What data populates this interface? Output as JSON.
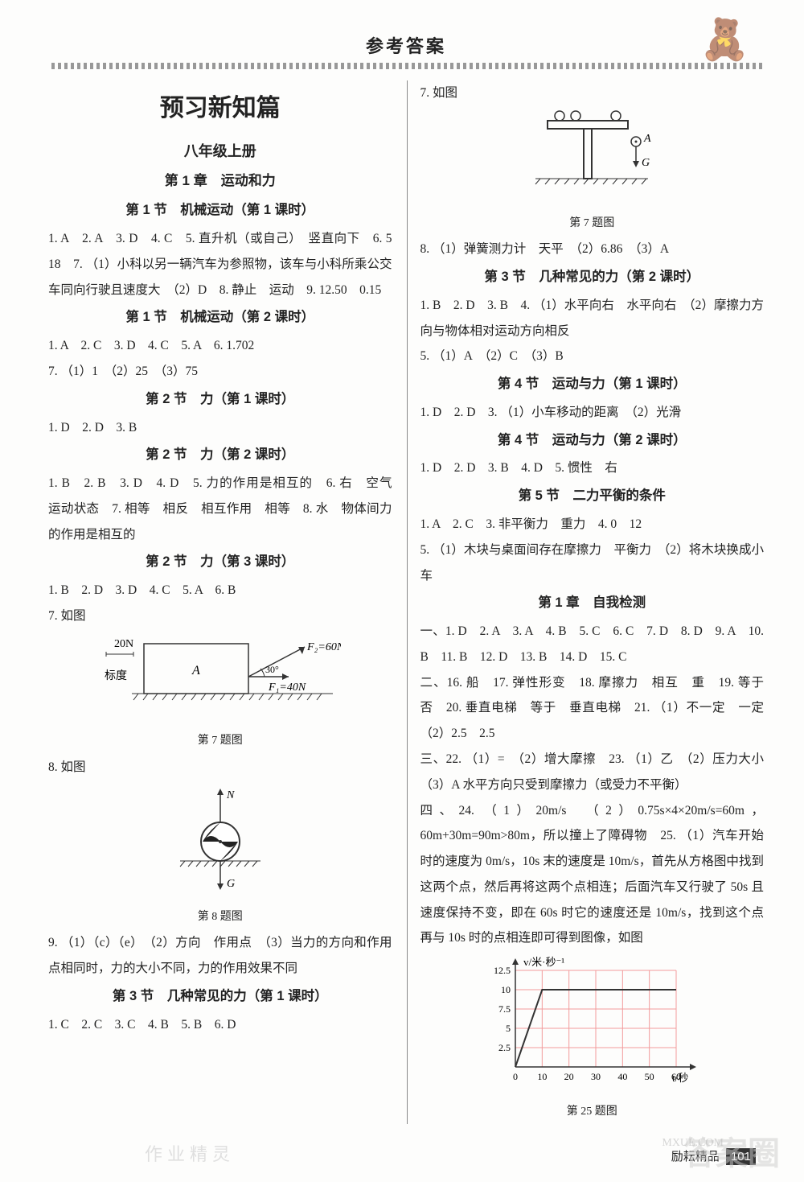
{
  "page": {
    "header": "参考答案",
    "bear_icon": "🐻",
    "footer_left": "励耘精品",
    "footer_page": "101",
    "watermark_big": "答案圈",
    "watermark_url": "MXUE.COM",
    "watermark_left": "作业精灵"
  },
  "left": {
    "title_main": "预习新知篇",
    "title_sub": "八年级上册",
    "ch1": "第 1 章　运动和力",
    "s1_1": "第 1 节　机械运动（第 1 课时）",
    "a1_1": "1. A　2. A　3. D　4. C　5. 直升机（或自己）　竖直向下　6. 5　18　7. （1）小科以另一辆汽车为参照物，该车与小科所乘公交车同向行驶且速度大　（2）D　8. 静止　运动　9. 12.50　0.15",
    "s1_2": "第 1 节　机械运动（第 2 课时）",
    "a1_2": "1. A　2. C　3. D　4. C　5. A　6. 1.702",
    "a1_2b": "7. （1）1　（2）25　（3）75",
    "s2_1": "第 2 节　力（第 1 课时）",
    "a2_1": "1. D　2. D　3. B",
    "s2_2": "第 2 节　力（第 2 课时）",
    "a2_2": "1. B　2. B　3. D　4. D　5. 力的作用是相互的　6. 右　空气　运动状态　7. 相等　相反　相互作用　相等　8. 水　物体间力的作用是相互的",
    "s2_3": "第 2 节　力（第 3 课时）",
    "a2_3": "1. B　2. D　3. D　4. C　5. A　6. B",
    "q7_label": "7. 如图",
    "fig7": {
      "scale_label": "20N",
      "scale_word": "标度",
      "box_label": "A",
      "f2": "F₂=60N",
      "f1": "F₁=40N",
      "angle": "30°",
      "caption": "第 7 题图"
    },
    "q8_label": "8. 如图",
    "fig8": {
      "n_label": "N",
      "g_label": "G",
      "caption": "第 8 题图"
    },
    "a9": "9. （1）（c）（e）　（2）方向　作用点　（3）当力的方向和作用点相同时，力的大小不同，力的作用效果不同",
    "s3_1": "第 3 节　几种常见的力（第 1 课时）",
    "a3_1": "1. C　2. C　3. C　4. B　5. B　6. D"
  },
  "right": {
    "q7_label": "7. 如图",
    "fig7": {
      "a_label": "A",
      "g_label": "G",
      "caption": "第 7 题图"
    },
    "a8": "8. （1）弹簧测力计　天平　（2）6.86　（3）A",
    "s3_2": "第 3 节　几种常见的力（第 2 课时）",
    "a3_2a": "1. B　2. D　3. B　4. （1）水平向右　水平向右　（2）摩擦力方向与物体相对运动方向相反",
    "a3_2b": "5. （1）A　（2）C　（3）B",
    "s4_1": "第 4 节　运动与力（第 1 课时）",
    "a4_1": "1. D　2. D　3. （1）小车移动的距离　（2）光滑",
    "s4_2": "第 4 节　运动与力（第 2 课时）",
    "a4_2": "1. D　2. D　3. B　4. D　5. 惯性　右",
    "s5": "第 5 节　二力平衡的条件",
    "a5a": "1. A　2. C　3. 非平衡力　重力　4. 0　12",
    "a5b": "5. （1）木块与桌面间存在摩擦力　平衡力　（2）将木块换成小车",
    "ch1_test": "第 1 章　自我检测",
    "t1": "一、1. D　2. A　3. A　4. B　5. C　6. C　7. D　8. D　9. A　10. B　11. B　12. D　13. B　14. D　15. C",
    "t2": "二、16. 船　17. 弹性形变　18. 摩擦力　相互　重　19. 等于　否　20. 垂直电梯　等于　垂直电梯　21. （1）不一定　一定　（2）2.5　2.5",
    "t3": "三、22. （1）=　（2）增大摩擦　23. （1）乙　（2）压力大小　（3）A 水平方向只受到摩擦力（或受力不平衡）",
    "t4": "四、24. （1）20m/s　（2）0.75s×4×20m/s=60m，60m+30m=90m>80m，所以撞上了障碍物　25. （1）汽车开始时的速度为 0m/s，10s 末的速度是 10m/s，首先从方格图中找到这两个点，然后再将这两个点相连；后面汽车又行驶了 50s 且速度保持不变，即在 60s 时它的速度还是 10m/s，找到这个点再与 10s 时的点相连即可得到图像，如图",
    "chart": {
      "ylabel": "v/米·秒⁻¹",
      "xlabel": "t/秒",
      "yticks": [
        "2.5",
        "5",
        "7.5",
        "10",
        "12.5"
      ],
      "xticks": [
        "0",
        "10",
        "20",
        "30",
        "40",
        "50",
        "60"
      ],
      "line_points": [
        [
          0,
          0
        ],
        [
          10,
          10
        ],
        [
          60,
          10
        ]
      ],
      "grid_color": "#f29b9b",
      "line_color": "#333",
      "ymax": 12.5,
      "xmax": 60,
      "caption": "第 25 题图"
    }
  }
}
